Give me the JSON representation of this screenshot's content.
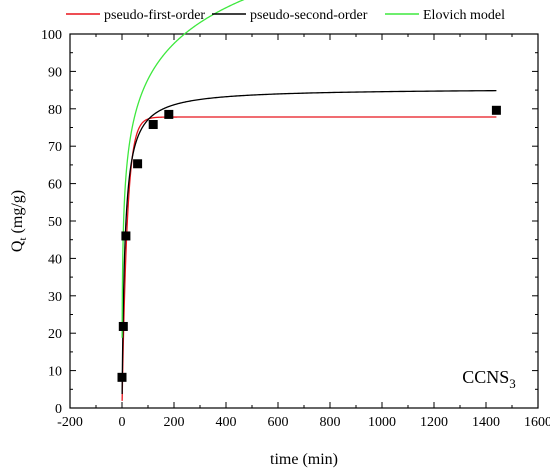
{
  "chart_data": {
    "type": "scatter",
    "title": "",
    "xlabel": "time (min)",
    "ylabel": "Q",
    "ylabel_sub": "t",
    "ylabel_unit": " (mg/g)",
    "xlim": [
      -200,
      1600
    ],
    "ylim": [
      0,
      100
    ],
    "xticks": [
      -200,
      0,
      200,
      400,
      600,
      800,
      1000,
      1200,
      1400,
      1600
    ],
    "yticks": [
      0,
      10,
      20,
      30,
      40,
      50,
      60,
      70,
      80,
      90,
      100
    ],
    "grid": false,
    "legend_placement": "top",
    "annotation": {
      "text": "CCNS",
      "sub": "3",
      "placement": "bottom-right"
    },
    "experimental": {
      "x": [
        0,
        5,
        15,
        60,
        120,
        180,
        1440
      ],
      "y": [
        8.2,
        21.8,
        46.0,
        65.3,
        75.8,
        78.5,
        79.6
      ]
    },
    "series": [
      {
        "name": "pseudo-first-order",
        "color": "#e8141c",
        "qe": 77.8,
        "k1": 0.05,
        "x_end": 1440
      },
      {
        "name": "pseudo-second-order",
        "color": "#000000",
        "qe": 85.5,
        "k2": 0.00107,
        "x_end": 1440
      },
      {
        "name": "Elovich model",
        "color": "#3ee83e",
        "alpha": 80,
        "beta": 0.0724,
        "x_end": 1440
      }
    ]
  }
}
